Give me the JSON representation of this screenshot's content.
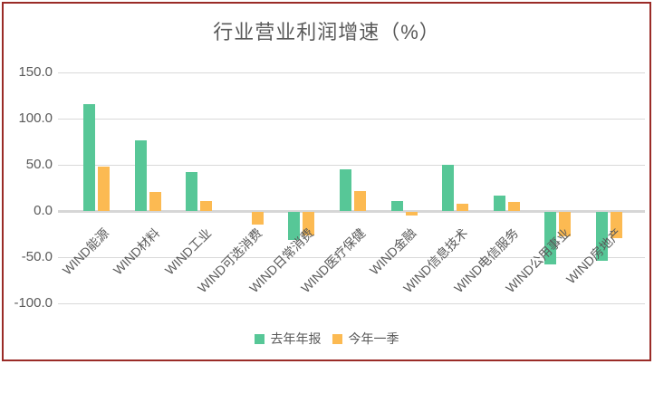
{
  "page": {
    "frame_border_color": "#9a2b27",
    "background": "#ffffff",
    "text_color": "#595959",
    "gridline_color": "#d9d9d9"
  },
  "chart_data": {
    "type": "bar",
    "title": "行业营业利润增速（%）",
    "categories": [
      "WIND能源",
      "WIND材料",
      "WIND工业",
      "WIND可选消费",
      "WIND日常消费",
      "WIND医疗保健",
      "WIND金融",
      "WIND信息技术",
      "WIND电信服务",
      "WIND公用事业",
      "WIND房地产"
    ],
    "series": [
      {
        "name": "去年年报",
        "color": "#57c797",
        "values": [
          116,
          76,
          42,
          0,
          -30,
          45,
          11,
          50,
          17,
          -57,
          -53
        ]
      },
      {
        "name": "今年一季",
        "color": "#fcba52",
        "values": [
          48,
          21,
          11,
          -14,
          -25,
          22,
          -4,
          8,
          10,
          -26,
          -28
        ]
      }
    ],
    "y_ticks": [
      150,
      100,
      50,
      0,
      -50,
      -100
    ],
    "y_tick_labels": [
      "150.0",
      "100.0",
      "50.0",
      "0.0",
      "-50.0",
      "-100.0"
    ],
    "ylim": [
      -100,
      150
    ],
    "grid": true,
    "legend_position": "bottom"
  }
}
